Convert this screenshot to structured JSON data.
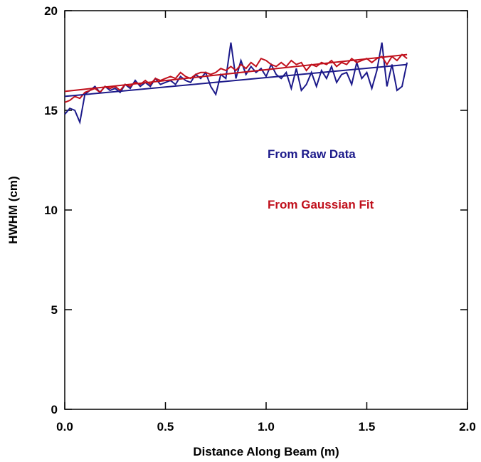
{
  "chart_data": {
    "type": "line",
    "xlabel": "Distance Along Beam (m)",
    "ylabel": "HWHM (cm)",
    "xlim": [
      0,
      2
    ],
    "ylim": [
      0,
      20
    ],
    "xticks": [
      {
        "value": 0,
        "label": "0.0"
      },
      {
        "value": 0.5,
        "label": "0.5"
      },
      {
        "value": 1,
        "label": "1.0"
      },
      {
        "value": 1.5,
        "label": "1.5"
      },
      {
        "value": 2,
        "label": "2.0"
      }
    ],
    "yticks": [
      0,
      5,
      10,
      15,
      20
    ],
    "x": [
      0,
      0.025,
      0.05,
      0.075,
      0.1,
      0.125,
      0.15,
      0.175,
      0.2,
      0.225,
      0.25,
      0.275,
      0.3,
      0.325,
      0.35,
      0.375,
      0.4,
      0.425,
      0.45,
      0.475,
      0.5,
      0.525,
      0.55,
      0.575,
      0.6,
      0.625,
      0.65,
      0.675,
      0.7,
      0.725,
      0.75,
      0.775,
      0.8,
      0.825,
      0.85,
      0.875,
      0.9,
      0.925,
      0.95,
      0.975,
      1.0,
      1.025,
      1.05,
      1.075,
      1.1,
      1.125,
      1.15,
      1.175,
      1.2,
      1.225,
      1.25,
      1.275,
      1.3,
      1.325,
      1.35,
      1.375,
      1.4,
      1.425,
      1.45,
      1.475,
      1.5,
      1.525,
      1.55,
      1.575,
      1.6,
      1.625,
      1.65,
      1.675,
      1.7
    ],
    "series": [
      {
        "name": "From Raw Data",
        "color": "#1c1a8a",
        "values": [
          14.8,
          15.1,
          15.0,
          14.4,
          15.8,
          16.0,
          16.2,
          15.9,
          16.2,
          16.0,
          16.1,
          15.9,
          16.3,
          16.1,
          16.5,
          16.2,
          16.4,
          16.2,
          16.6,
          16.3,
          16.4,
          16.5,
          16.3,
          16.7,
          16.5,
          16.4,
          16.8,
          16.6,
          16.9,
          16.2,
          15.8,
          16.8,
          16.6,
          18.4,
          16.6,
          17.5,
          16.8,
          17.2,
          16.9,
          17.1,
          16.7,
          17.3,
          16.8,
          16.6,
          16.9,
          16.1,
          17.1,
          16.0,
          16.3,
          16.9,
          16.2,
          17.0,
          16.6,
          17.2,
          16.4,
          16.8,
          16.9,
          16.3,
          17.4,
          16.6,
          16.9,
          16.1,
          17.0,
          18.4,
          16.2,
          17.3,
          16.0,
          16.2,
          17.4
        ]
      },
      {
        "name": "From Gaussian Fit",
        "color": "#c0101c",
        "values": [
          15.4,
          15.5,
          15.7,
          15.6,
          15.9,
          16.0,
          16.1,
          15.9,
          16.2,
          16.1,
          16.2,
          16.0,
          16.3,
          16.2,
          16.4,
          16.3,
          16.5,
          16.3,
          16.6,
          16.5,
          16.6,
          16.7,
          16.6,
          16.9,
          16.7,
          16.6,
          16.8,
          16.9,
          16.9,
          16.8,
          16.9,
          17.1,
          17.0,
          17.2,
          17.0,
          17.3,
          17.1,
          17.4,
          17.2,
          17.6,
          17.5,
          17.3,
          17.2,
          17.4,
          17.2,
          17.5,
          17.3,
          17.4,
          17.0,
          17.3,
          17.2,
          17.4,
          17.3,
          17.5,
          17.2,
          17.4,
          17.3,
          17.6,
          17.4,
          17.5,
          17.6,
          17.4,
          17.6,
          17.7,
          17.3,
          17.7,
          17.5,
          17.8,
          17.6
        ]
      },
      {
        "color": "#1c1a8a",
        "x": [
          0,
          1.7
        ],
        "values": [
          15.7,
          17.3
        ]
      },
      {
        "color": "#c0101c",
        "x": [
          0,
          1.7
        ],
        "values": [
          15.95,
          17.8
        ]
      }
    ]
  }
}
